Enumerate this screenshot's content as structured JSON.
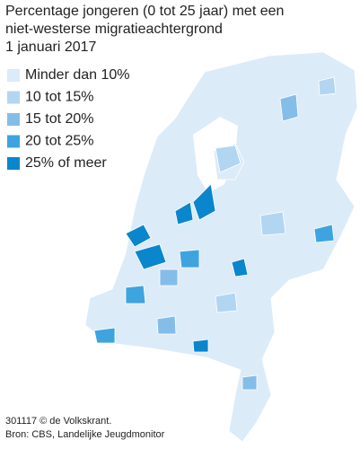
{
  "title": [
    "Percentage jongeren (0 tot 25 jaar) met een",
    "niet-westerse  migratieachtergrond",
    "1 januari 2017"
  ],
  "legend": [
    {
      "label": "Minder dan 10%",
      "color": "#dcebf8"
    },
    {
      "label": "10 tot 15%",
      "color": "#b2d6f1"
    },
    {
      "label": "15 tot 20%",
      "color": "#84bde8"
    },
    {
      "label": "20 tot 25%",
      "color": "#3ea4e0"
    },
    {
      "label": "25% of meer",
      "color": "#0a86cd"
    }
  ],
  "footer": [
    "301117 © de Volkskrant.",
    "Bron: CBS, Landelijke Jeugdmonitor"
  ]
}
